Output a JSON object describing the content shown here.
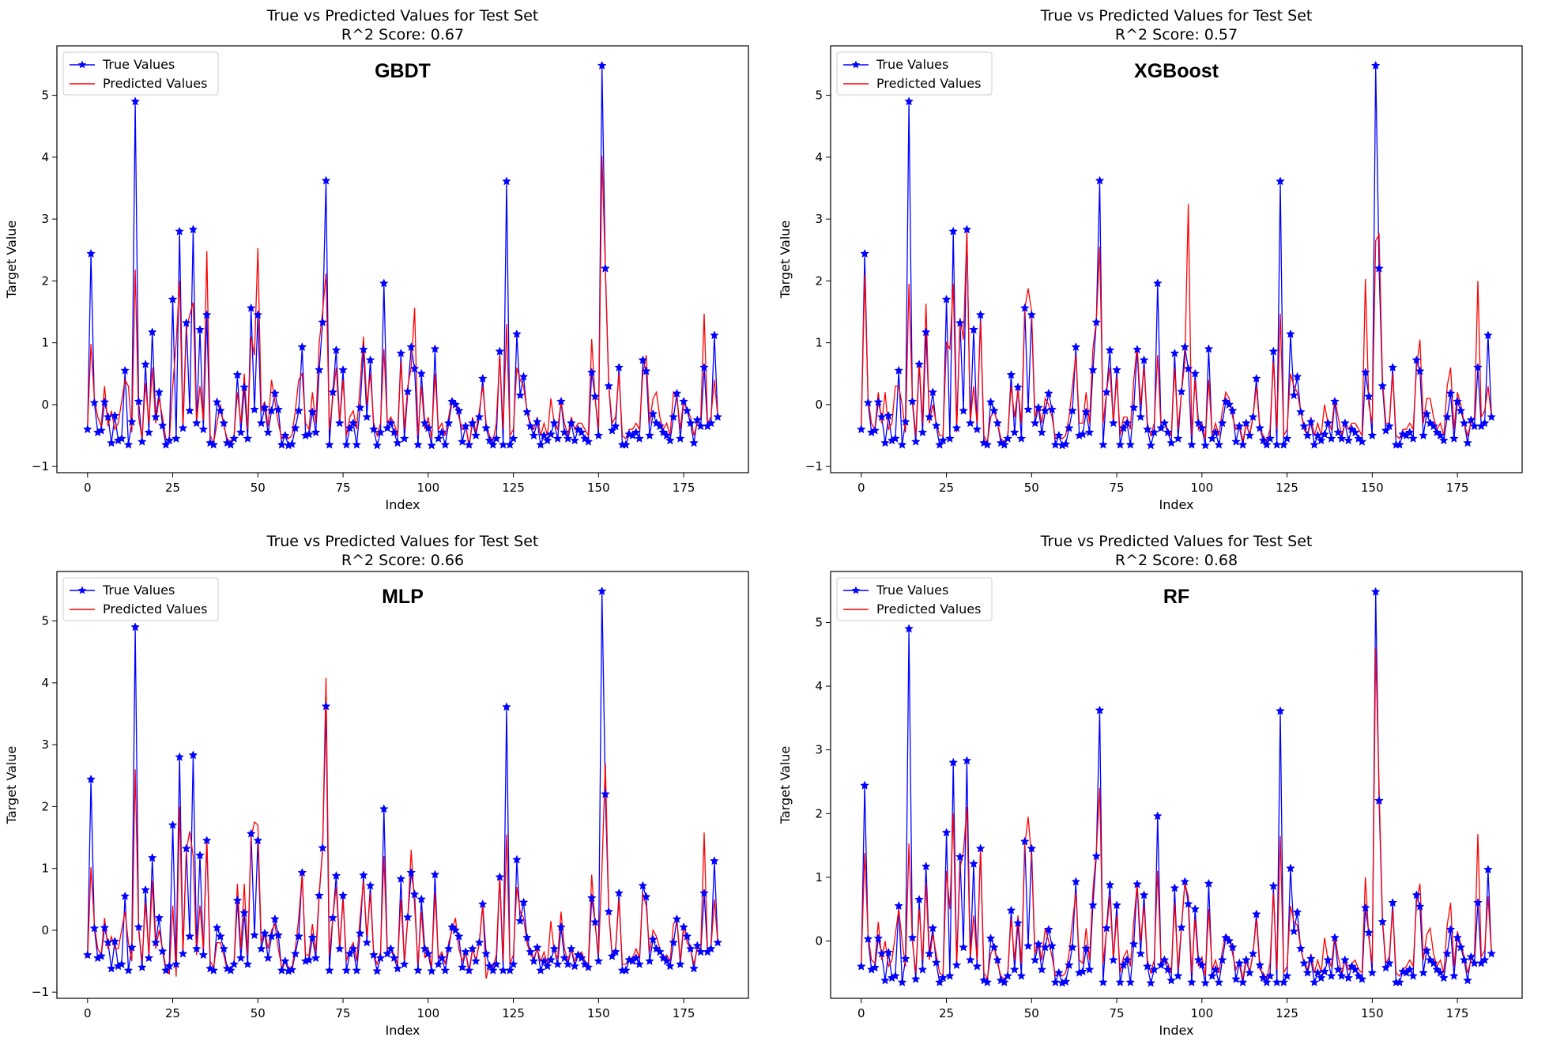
{
  "chart_data": [
    {
      "type": "line",
      "title": "True vs Predicted Values for Test Set",
      "subtitle": "R^2 Score: 0.67",
      "annotation": "GBDT",
      "xlabel": "Index",
      "ylabel": "Target Value",
      "xlim": [
        -9,
        194
      ],
      "ylim": [
        -1.1,
        5.8
      ],
      "xticks": [
        0,
        25,
        50,
        75,
        100,
        125,
        150,
        175
      ],
      "yticks": [
        -1,
        0,
        1,
        2,
        3,
        4,
        5
      ],
      "legend_position": "upper-left",
      "colors": {
        "true": "#0000ff",
        "predicted": "#ff0000"
      },
      "series": [
        {
          "name": "True Values",
          "marker": "star",
          "key": "true"
        },
        {
          "name": "Predicted Values",
          "marker": "none",
          "key": "pred_gbdt"
        }
      ]
    },
    {
      "type": "line",
      "title": "True vs Predicted Values for Test Set",
      "subtitle": "R^2 Score: 0.57",
      "annotation": "XGBoost",
      "xlabel": "Index",
      "ylabel": "Target Value",
      "xlim": [
        -9,
        194
      ],
      "ylim": [
        -1.1,
        5.8
      ],
      "xticks": [
        0,
        25,
        50,
        75,
        100,
        125,
        150,
        175
      ],
      "yticks": [
        -1,
        0,
        1,
        2,
        3,
        4,
        5
      ],
      "legend_position": "upper-left",
      "colors": {
        "true": "#0000ff",
        "predicted": "#ff0000"
      },
      "series": [
        {
          "name": "True Values",
          "marker": "star",
          "key": "true"
        },
        {
          "name": "Predicted Values",
          "marker": "none",
          "key": "pred_xgb"
        }
      ]
    },
    {
      "type": "line",
      "title": "True vs Predicted Values for Test Set",
      "subtitle": "R^2 Score: 0.66",
      "annotation": "MLP",
      "xlabel": "Index",
      "ylabel": "Target Value",
      "xlim": [
        -9,
        194
      ],
      "ylim": [
        -1.1,
        5.8
      ],
      "xticks": [
        0,
        25,
        50,
        75,
        100,
        125,
        150,
        175
      ],
      "yticks": [
        -1,
        0,
        1,
        2,
        3,
        4,
        5
      ],
      "legend_position": "upper-left",
      "colors": {
        "true": "#0000ff",
        "predicted": "#ff0000"
      },
      "series": [
        {
          "name": "True Values",
          "marker": "star",
          "key": "true"
        },
        {
          "name": "Predicted Values",
          "marker": "none",
          "key": "pred_mlp"
        }
      ]
    },
    {
      "type": "line",
      "title": "True vs Predicted Values for Test Set",
      "subtitle": "R^2 Score: 0.68",
      "annotation": "RF",
      "xlabel": "Index",
      "ylabel": "Target Value",
      "xlim": [
        -9,
        194
      ],
      "ylim": [
        -0.9,
        5.8
      ],
      "xticks": [
        0,
        25,
        50,
        75,
        100,
        125,
        150,
        175
      ],
      "yticks": [
        0,
        1,
        2,
        3,
        4,
        5
      ],
      "legend_position": "upper-left",
      "colors": {
        "true": "#0000ff",
        "predicted": "#ff0000"
      },
      "series": [
        {
          "name": "True Values",
          "marker": "star",
          "key": "true"
        },
        {
          "name": "Predicted Values",
          "marker": "none",
          "key": "pred_rf"
        }
      ]
    }
  ],
  "values": {
    "true": [
      -0.4,
      2.44,
      0.03,
      -0.45,
      -0.42,
      0.04,
      -0.2,
      -0.62,
      -0.18,
      -0.58,
      -0.55,
      0.55,
      -0.65,
      -0.28,
      4.9,
      0.05,
      -0.6,
      0.65,
      -0.45,
      1.17,
      -0.2,
      0.2,
      -0.34,
      -0.65,
      -0.58,
      1.7,
      -0.55,
      2.8,
      -0.38,
      1.32,
      -0.1,
      2.83,
      -0.3,
      1.21,
      -0.4,
      1.45,
      -0.62,
      -0.65,
      0.04,
      -0.1,
      -0.3,
      -0.62,
      -0.65,
      -0.55,
      0.48,
      -0.45,
      0.28,
      -0.55,
      1.56,
      -0.08,
      1.45,
      -0.3,
      -0.05,
      -0.45,
      -0.1,
      0.18,
      -0.08,
      -0.65,
      -0.5,
      -0.66,
      -0.64,
      -0.38,
      -0.1,
      0.93,
      -0.5,
      -0.48,
      -0.12,
      -0.45,
      0.56,
      1.33,
      3.62,
      -0.65,
      0.2,
      0.88,
      -0.3,
      0.56,
      -0.65,
      -0.38,
      -0.3,
      -0.65,
      -0.05,
      0.89,
      -0.2,
      0.72,
      -0.4,
      -0.66,
      -0.45,
      1.96,
      -0.38,
      -0.3,
      -0.45,
      -0.62,
      0.83,
      -0.55,
      0.21,
      0.93,
      0.58,
      -0.65,
      0.5,
      -0.3,
      -0.38,
      -0.66,
      0.9,
      -0.55,
      -0.45,
      -0.65,
      -0.3,
      0.05,
      0.0,
      -0.1,
      -0.6,
      -0.35,
      -0.65,
      -0.3,
      -0.5,
      -0.2,
      0.42,
      -0.38,
      -0.58,
      -0.65,
      -0.55,
      0.86,
      -0.65,
      3.61,
      -0.65,
      -0.55,
      1.14,
      0.15,
      0.45,
      -0.12,
      -0.35,
      -0.5,
      -0.28,
      -0.65,
      -0.5,
      -0.58,
      -0.48,
      -0.3,
      -0.55,
      0.05,
      -0.45,
      -0.55,
      -0.3,
      -0.58,
      -0.4,
      -0.45,
      -0.55,
      -0.6,
      0.52,
      0.13,
      -0.5,
      5.48,
      2.2,
      0.3,
      -0.42,
      -0.35,
      0.6,
      -0.65,
      -0.65,
      -0.48,
      -0.5,
      -0.45,
      -0.55,
      0.72,
      0.54,
      -0.5,
      -0.15,
      -0.3,
      -0.35,
      -0.45,
      -0.5,
      -0.58,
      -0.2,
      0.18,
      -0.55,
      0.05,
      -0.1,
      -0.3,
      -0.62,
      -0.25,
      -0.35,
      0.6,
      -0.35,
      -0.3,
      1.12,
      -0.2
    ],
    "pred_gbdt": [
      -0.35,
      0.98,
      0.1,
      -0.2,
      -0.35,
      0.3,
      -0.35,
      -0.1,
      -0.4,
      -0.3,
      0.05,
      0.4,
      0.3,
      -0.45,
      2.18,
      -0.2,
      -0.55,
      0.35,
      -0.3,
      0.6,
      -0.3,
      0.1,
      -0.2,
      -0.55,
      -0.6,
      0.3,
      1.0,
      2.0,
      -0.4,
      1.2,
      1.45,
      1.65,
      -0.3,
      0.3,
      -0.25,
      2.48,
      -0.5,
      -0.62,
      -0.3,
      0.0,
      -0.35,
      -0.55,
      -0.6,
      -0.5,
      0.2,
      -0.3,
      0.5,
      -0.4,
      1.1,
      0.8,
      2.53,
      -0.1,
      0.05,
      -0.35,
      0.4,
      0.05,
      -0.3,
      -0.55,
      -0.45,
      -0.55,
      -0.5,
      -0.1,
      0.4,
      0.5,
      -0.3,
      -0.4,
      0.2,
      -0.3,
      1.0,
      1.5,
      2.12,
      -0.4,
      0.1,
      0.6,
      -0.3,
      0.4,
      -0.5,
      -0.2,
      -0.1,
      -0.4,
      0.3,
      1.1,
      0.0,
      0.5,
      -0.3,
      -0.5,
      -0.3,
      0.9,
      -0.3,
      -0.2,
      -0.3,
      -0.5,
      0.7,
      -0.4,
      0.3,
      0.6,
      1.56,
      -0.5,
      0.3,
      -0.4,
      -0.2,
      -0.55,
      0.5,
      -0.4,
      -0.3,
      -0.5,
      -0.2,
      0.1,
      0.0,
      -0.2,
      -0.4,
      -0.3,
      -0.7,
      -0.2,
      -0.45,
      -0.1,
      0.3,
      -0.3,
      -0.5,
      -0.6,
      -0.3,
      0.8,
      -0.4,
      1.3,
      -0.5,
      -0.4,
      0.6,
      0.4,
      0.3,
      -0.1,
      -0.3,
      -0.4,
      -0.2,
      -0.5,
      -0.3,
      -0.5,
      0.1,
      -0.3,
      -0.4,
      0.05,
      -0.3,
      -0.5,
      -0.2,
      -0.4,
      -0.3,
      -0.3,
      -0.4,
      -0.5,
      1.06,
      0.1,
      -0.4,
      4.02,
      2.2,
      0.3,
      -0.3,
      -0.2,
      0.5,
      -0.5,
      -0.55,
      -0.4,
      -0.4,
      -0.3,
      -0.4,
      0.5,
      0.8,
      -0.3,
      0.1,
      0.2,
      -0.2,
      -0.4,
      -0.3,
      -0.5,
      0.2,
      0.1,
      -0.4,
      0.1,
      -0.1,
      -0.2,
      -0.5,
      -0.3,
      -0.2,
      1.47,
      -0.3,
      -0.2,
      0.4,
      -0.2
    ],
    "pred_xgb": [
      -0.35,
      2.1,
      0.1,
      -0.3,
      -0.4,
      0.2,
      -0.3,
      0.2,
      -0.4,
      -0.3,
      0.3,
      0.3,
      0.0,
      -0.45,
      1.95,
      0.1,
      -0.5,
      0.7,
      -0.3,
      1.63,
      -0.3,
      0.0,
      -0.3,
      -0.5,
      -0.5,
      1.0,
      0.9,
      1.95,
      -0.45,
      1.4,
      1.05,
      2.8,
      -0.3,
      0.3,
      -0.3,
      1.35,
      -0.5,
      -0.62,
      -0.2,
      -0.1,
      -0.3,
      -0.55,
      -0.6,
      -0.5,
      0.3,
      -0.2,
      0.25,
      -0.3,
      1.55,
      1.88,
      1.5,
      -0.2,
      0.0,
      -0.3,
      0.1,
      0.0,
      -0.2,
      -0.55,
      -0.5,
      -0.55,
      -0.5,
      -0.2,
      0.3,
      0.8,
      -0.3,
      -0.3,
      0.2,
      -0.3,
      0.9,
      1.35,
      2.55,
      -0.3,
      0.2,
      0.6,
      -0.3,
      0.45,
      -0.5,
      -0.2,
      -0.2,
      -0.4,
      0.4,
      0.95,
      0.0,
      0.6,
      -0.3,
      -0.5,
      -0.3,
      0.8,
      -0.4,
      -0.3,
      -0.4,
      -0.5,
      0.6,
      -0.4,
      0.2,
      0.7,
      3.24,
      -0.5,
      0.4,
      -0.4,
      -0.3,
      -0.55,
      0.4,
      -0.5,
      -0.3,
      -0.5,
      -0.1,
      0.2,
      0.1,
      -0.2,
      -0.4,
      -0.3,
      -0.6,
      -0.3,
      -0.5,
      -0.2,
      0.3,
      -0.4,
      -0.5,
      -0.6,
      -0.4,
      0.7,
      -0.4,
      1.47,
      -0.5,
      -0.4,
      0.5,
      0.3,
      0.2,
      -0.1,
      -0.4,
      -0.5,
      -0.2,
      -0.5,
      -0.3,
      -0.5,
      0.0,
      -0.3,
      -0.4,
      0.1,
      -0.2,
      -0.5,
      -0.3,
      -0.4,
      -0.3,
      -0.3,
      -0.4,
      -0.5,
      2.03,
      0.0,
      -0.3,
      2.65,
      2.75,
      0.4,
      -0.3,
      -0.3,
      0.5,
      -0.5,
      -0.55,
      -0.4,
      -0.4,
      -0.3,
      -0.4,
      0.6,
      1.05,
      -0.3,
      0.1,
      0.1,
      -0.2,
      -0.4,
      -0.3,
      -0.5,
      0.3,
      0.6,
      -0.4,
      0.2,
      0.0,
      -0.3,
      -0.5,
      -0.3,
      -0.2,
      2.0,
      -0.2,
      -0.1,
      0.3,
      -0.2
    ],
    "pred_mlp": [
      -0.45,
      1.02,
      0.1,
      -0.3,
      -0.4,
      0.2,
      -0.3,
      -0.1,
      -0.3,
      -0.3,
      0.0,
      0.3,
      -0.2,
      -0.5,
      2.6,
      0.0,
      -0.5,
      0.45,
      -0.4,
      0.8,
      -0.3,
      0.0,
      -0.3,
      -0.6,
      -0.7,
      0.4,
      -0.75,
      2.0,
      -0.4,
      1.3,
      1.6,
      1.2,
      -0.4,
      0.4,
      -0.3,
      1.5,
      -0.5,
      -0.6,
      -0.2,
      -0.2,
      -0.4,
      -0.65,
      -0.6,
      -0.55,
      0.75,
      -0.3,
      0.75,
      -0.4,
      1.5,
      1.75,
      1.7,
      -0.2,
      0.0,
      -0.3,
      0.0,
      0.1,
      -0.3,
      -0.6,
      -0.5,
      -0.6,
      -0.6,
      -0.3,
      0.2,
      0.9,
      -0.4,
      -0.4,
      0.1,
      -0.35,
      0.6,
      1.3,
      4.08,
      -0.4,
      0.2,
      0.7,
      -0.3,
      0.5,
      -0.5,
      -0.3,
      -0.2,
      -0.5,
      0.2,
      0.8,
      -0.1,
      0.6,
      -0.4,
      -0.55,
      -0.35,
      1.2,
      -0.4,
      -0.3,
      -0.4,
      -0.55,
      0.5,
      -0.5,
      0.2,
      1.3,
      0.4,
      -0.55,
      0.3,
      -0.45,
      -0.3,
      -0.6,
      0.6,
      -0.45,
      -0.35,
      -0.55,
      -0.2,
      0.0,
      0.2,
      -0.3,
      -0.5,
      -0.35,
      -0.7,
      -0.3,
      -0.5,
      -0.2,
      0.4,
      -0.78,
      -0.55,
      -0.6,
      -0.4,
      0.9,
      -0.5,
      1.55,
      -0.55,
      -0.4,
      0.7,
      0.3,
      0.2,
      -0.2,
      -0.4,
      -0.45,
      -0.3,
      -0.5,
      -0.35,
      -0.55,
      0.15,
      -0.35,
      -0.45,
      0.3,
      -0.3,
      -0.5,
      -0.3,
      -0.5,
      -0.4,
      -0.35,
      -0.5,
      -0.55,
      0.9,
      0.1,
      -0.4,
      1.0,
      2.7,
      0.3,
      -0.4,
      -0.3,
      0.5,
      -0.55,
      -0.55,
      -0.45,
      -0.45,
      -0.3,
      -0.45,
      0.6,
      0.4,
      -0.35,
      0.0,
      -0.1,
      -0.3,
      -0.45,
      -0.4,
      -0.5,
      0.1,
      0.2,
      -0.5,
      0.1,
      -0.2,
      -0.3,
      -0.55,
      -0.3,
      -0.3,
      1.58,
      -0.35,
      -0.3,
      0.5,
      -0.2
    ],
    "pred_rf": [
      -0.35,
      1.38,
      0.1,
      -0.3,
      -0.35,
      0.3,
      -0.3,
      0.0,
      -0.4,
      -0.3,
      0.1,
      0.5,
      0.0,
      -0.4,
      1.53,
      0.0,
      -0.5,
      0.5,
      -0.3,
      0.9,
      -0.3,
      0.1,
      -0.2,
      -0.5,
      -0.55,
      1.1,
      0.5,
      2.0,
      -0.4,
      1.15,
      1.4,
      2.1,
      -0.3,
      0.4,
      -0.3,
      1.45,
      -0.5,
      -0.6,
      -0.2,
      -0.1,
      -0.35,
      -0.55,
      -0.6,
      -0.5,
      0.35,
      -0.3,
      0.4,
      -0.35,
      1.5,
      1.95,
      1.3,
      -0.2,
      0.0,
      -0.3,
      0.2,
      0.0,
      -0.25,
      -0.55,
      -0.5,
      -0.55,
      -0.5,
      -0.2,
      0.3,
      0.75,
      -0.3,
      -0.35,
      0.2,
      -0.3,
      0.8,
      1.4,
      2.4,
      -0.35,
      0.15,
      0.7,
      -0.3,
      0.4,
      -0.5,
      -0.25,
      -0.15,
      -0.4,
      0.3,
      0.9,
      0.0,
      0.55,
      -0.3,
      -0.5,
      -0.3,
      1.1,
      -0.35,
      -0.25,
      -0.35,
      -0.5,
      0.6,
      -0.45,
      0.25,
      0.9,
      0.7,
      -0.5,
      0.35,
      -0.4,
      -0.25,
      -0.55,
      0.5,
      -0.45,
      -0.3,
      -0.5,
      -0.15,
      0.1,
      0.05,
      -0.2,
      -0.45,
      -0.3,
      -0.6,
      -0.25,
      -0.5,
      -0.2,
      0.35,
      -0.45,
      -0.5,
      -0.6,
      -0.35,
      0.75,
      -0.45,
      1.65,
      -0.5,
      -0.4,
      0.55,
      0.3,
      0.25,
      -0.1,
      -0.35,
      -0.45,
      -0.2,
      -0.5,
      -0.3,
      -0.5,
      0.05,
      -0.3,
      -0.4,
      0.1,
      -0.25,
      -0.5,
      -0.3,
      -0.45,
      -0.35,
      -0.3,
      -0.45,
      -0.5,
      1.0,
      0.05,
      -0.35,
      4.6,
      2.4,
      0.35,
      -0.35,
      -0.25,
      0.5,
      -0.5,
      -0.55,
      -0.45,
      -0.4,
      -0.3,
      -0.4,
      0.6,
      0.9,
      -0.3,
      0.1,
      0.2,
      -0.2,
      -0.4,
      -0.3,
      -0.5,
      0.25,
      0.6,
      -0.4,
      0.15,
      -0.05,
      -0.25,
      -0.5,
      -0.3,
      -0.2,
      1.68,
      -0.25,
      -0.15,
      0.7,
      -0.2
    ]
  }
}
